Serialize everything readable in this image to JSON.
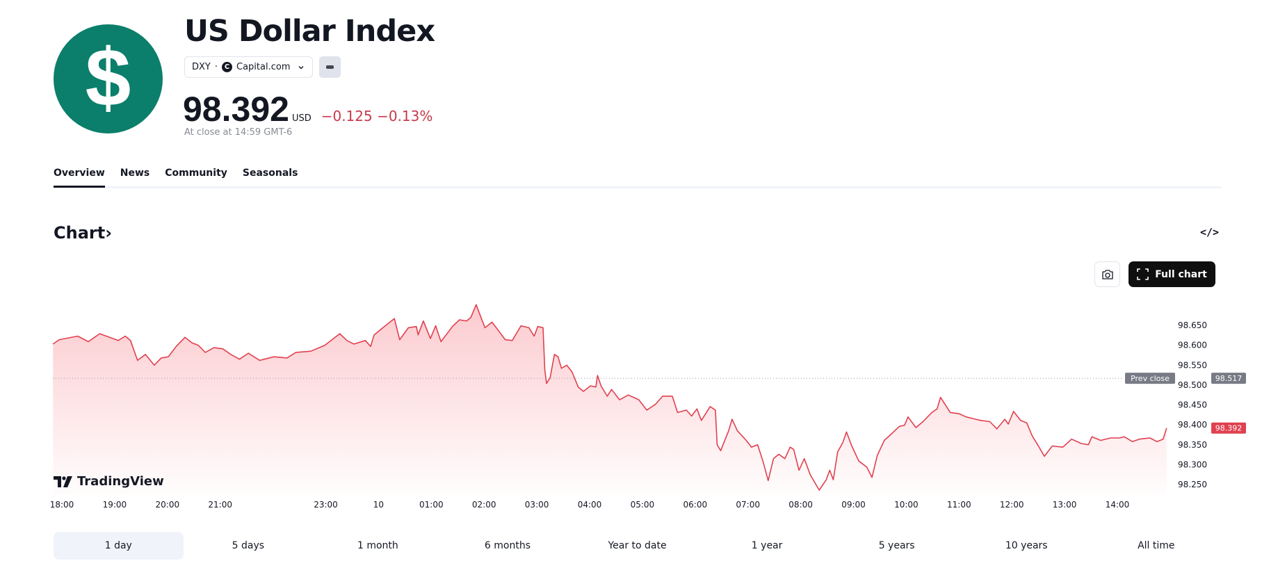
{
  "header": {
    "logo_glyph": "$",
    "title": "US Dollar Index",
    "symbol": "DXY",
    "separator": "·",
    "exchange_icon": "C",
    "exchange": "Capital.com",
    "price": "98.392",
    "currency": "USD",
    "change": "−0.125",
    "change_percent": "−0.13%",
    "close_note": "At close at 14:59 GMT-6"
  },
  "tabs": [
    {
      "label": "Overview",
      "active": true
    },
    {
      "label": "News"
    },
    {
      "label": "Community"
    },
    {
      "label": "Seasonals"
    }
  ],
  "chart_section": {
    "title": "Chart",
    "chevron": "›",
    "embed_label": "</>",
    "full_chart_label": "Full chart",
    "watermark": "TradingView"
  },
  "colors": {
    "line": "#e0404f",
    "negative": "#c73a4c",
    "brand_green": "#0b7f6b",
    "prev_close_tag": "#787b86"
  },
  "chart_data": {
    "type": "area",
    "x_unit": "minutes since 18:00",
    "y_unit": "USD",
    "ylim": [
      98.23,
      98.71
    ],
    "y_ticks": [
      98.65,
      98.6,
      98.55,
      98.5,
      98.45,
      98.4,
      98.35,
      98.3,
      98.25
    ],
    "x_ticks": [
      {
        "label": "18:00",
        "t": 0
      },
      {
        "label": "19:00",
        "t": 60
      },
      {
        "label": "20:00",
        "t": 120
      },
      {
        "label": "21:00",
        "t": 180
      },
      {
        "label": "23:00",
        "t": 300
      },
      {
        "label": "10",
        "t": 360
      },
      {
        "label": "01:00",
        "t": 420
      },
      {
        "label": "02:00",
        "t": 480
      },
      {
        "label": "03:00",
        "t": 540
      },
      {
        "label": "04:00",
        "t": 600
      },
      {
        "label": "05:00",
        "t": 660
      },
      {
        "label": "06:00",
        "t": 720
      },
      {
        "label": "07:00",
        "t": 780
      },
      {
        "label": "08:00",
        "t": 840
      },
      {
        "label": "09:00",
        "t": 900
      },
      {
        "label": "10:00",
        "t": 960
      },
      {
        "label": "11:00",
        "t": 1020
      },
      {
        "label": "12:00",
        "t": 1080
      },
      {
        "label": "13:00",
        "t": 1140
      },
      {
        "label": "14:00",
        "t": 1200
      }
    ],
    "prev_close": {
      "label": "Prev close",
      "value": "98.517"
    },
    "last": {
      "value": "98.392"
    },
    "points": [
      [
        -10,
        98.603
      ],
      [
        -3,
        98.614
      ],
      [
        18,
        98.623
      ],
      [
        30,
        98.609
      ],
      [
        43,
        98.629
      ],
      [
        64,
        98.612
      ],
      [
        72,
        98.623
      ],
      [
        78,
        98.612
      ],
      [
        86,
        98.562
      ],
      [
        95,
        98.577
      ],
      [
        105,
        98.55
      ],
      [
        113,
        98.568
      ],
      [
        121,
        98.571
      ],
      [
        130,
        98.597
      ],
      [
        140,
        98.62
      ],
      [
        148,
        98.606
      ],
      [
        155,
        98.6
      ],
      [
        163,
        98.582
      ],
      [
        173,
        98.594
      ],
      [
        183,
        98.591
      ],
      [
        192,
        98.577
      ],
      [
        202,
        98.565
      ],
      [
        212,
        98.58
      ],
      [
        225,
        98.562
      ],
      [
        241,
        98.571
      ],
      [
        256,
        98.568
      ],
      [
        266,
        98.582
      ],
      [
        283,
        98.585
      ],
      [
        299,
        98.6
      ],
      [
        316,
        98.629
      ],
      [
        324,
        98.612
      ],
      [
        332,
        98.603
      ],
      [
        345,
        98.612
      ],
      [
        351,
        98.597
      ],
      [
        355,
        98.626
      ],
      [
        365,
        98.644
      ],
      [
        378,
        98.667
      ],
      [
        384,
        98.614
      ],
      [
        394,
        98.644
      ],
      [
        403,
        98.647
      ],
      [
        405,
        98.626
      ],
      [
        411,
        98.661
      ],
      [
        419,
        98.617
      ],
      [
        425,
        98.649
      ],
      [
        431,
        98.609
      ],
      [
        444,
        98.647
      ],
      [
        452,
        98.664
      ],
      [
        460,
        98.661
      ],
      [
        465,
        98.67
      ],
      [
        471,
        98.702
      ],
      [
        477,
        98.667
      ],
      [
        481,
        98.644
      ],
      [
        489,
        98.658
      ],
      [
        498,
        98.632
      ],
      [
        504,
        98.614
      ],
      [
        512,
        98.612
      ],
      [
        522,
        98.649
      ],
      [
        531,
        98.644
      ],
      [
        537,
        98.623
      ],
      [
        541,
        98.647
      ],
      [
        547,
        98.644
      ],
      [
        549,
        98.539
      ],
      [
        551,
        98.504
      ],
      [
        555,
        98.518
      ],
      [
        560,
        98.577
      ],
      [
        564,
        98.571
      ],
      [
        568,
        98.542
      ],
      [
        574,
        98.55
      ],
      [
        580,
        98.533
      ],
      [
        587,
        98.495
      ],
      [
        593,
        98.484
      ],
      [
        601,
        98.498
      ],
      [
        607,
        98.495
      ],
      [
        609,
        98.524
      ],
      [
        613,
        98.498
      ],
      [
        620,
        98.472
      ],
      [
        625,
        98.489
      ],
      [
        634,
        98.463
      ],
      [
        644,
        98.475
      ],
      [
        650,
        98.469
      ],
      [
        656,
        98.463
      ],
      [
        665,
        98.437
      ],
      [
        675,
        98.452
      ],
      [
        683,
        98.472
      ],
      [
        694,
        98.472
      ],
      [
        700,
        98.431
      ],
      [
        710,
        98.437
      ],
      [
        716,
        98.422
      ],
      [
        722,
        98.44
      ],
      [
        727,
        98.411
      ],
      [
        737,
        98.446
      ],
      [
        743,
        98.437
      ],
      [
        745,
        98.35
      ],
      [
        749,
        98.335
      ],
      [
        758,
        98.385
      ],
      [
        762,
        98.414
      ],
      [
        768,
        98.385
      ],
      [
        778,
        98.361
      ],
      [
        784,
        98.344
      ],
      [
        791,
        98.35
      ],
      [
        797,
        98.309
      ],
      [
        803,
        98.26
      ],
      [
        809,
        98.315
      ],
      [
        815,
        98.326
      ],
      [
        822,
        98.315
      ],
      [
        828,
        98.344
      ],
      [
        832,
        98.338
      ],
      [
        838,
        98.286
      ],
      [
        844,
        98.315
      ],
      [
        851,
        98.274
      ],
      [
        861,
        98.236
      ],
      [
        869,
        98.262
      ],
      [
        873,
        98.286
      ],
      [
        877,
        98.262
      ],
      [
        882,
        98.332
      ],
      [
        888,
        98.356
      ],
      [
        892,
        98.382
      ],
      [
        898,
        98.347
      ],
      [
        906,
        98.309
      ],
      [
        915,
        98.294
      ],
      [
        921,
        98.268
      ],
      [
        927,
        98.323
      ],
      [
        935,
        98.361
      ],
      [
        944,
        98.379
      ],
      [
        952,
        98.396
      ],
      [
        958,
        98.399
      ],
      [
        962,
        98.42
      ],
      [
        971,
        98.393
      ],
      [
        979,
        98.408
      ],
      [
        989,
        98.431
      ],
      [
        995,
        98.44
      ],
      [
        999,
        98.469
      ],
      [
        1010,
        98.431
      ],
      [
        1020,
        98.428
      ],
      [
        1028,
        98.42
      ],
      [
        1039,
        98.414
      ],
      [
        1045,
        98.411
      ],
      [
        1055,
        98.408
      ],
      [
        1063,
        98.39
      ],
      [
        1072,
        98.414
      ],
      [
        1076,
        98.402
      ],
      [
        1082,
        98.434
      ],
      [
        1090,
        98.411
      ],
      [
        1097,
        98.405
      ],
      [
        1103,
        98.373
      ],
      [
        1111,
        98.344
      ],
      [
        1117,
        98.321
      ],
      [
        1126,
        98.347
      ],
      [
        1138,
        98.344
      ],
      [
        1148,
        98.364
      ],
      [
        1159,
        98.353
      ],
      [
        1167,
        98.35
      ],
      [
        1171,
        98.37
      ],
      [
        1181,
        98.361
      ],
      [
        1192,
        98.367
      ],
      [
        1202,
        98.367
      ],
      [
        1208,
        98.37
      ],
      [
        1217,
        98.358
      ],
      [
        1225,
        98.364
      ],
      [
        1237,
        98.367
      ],
      [
        1245,
        98.358
      ],
      [
        1252,
        98.364
      ],
      [
        1256,
        98.392
      ]
    ]
  },
  "ranges": [
    {
      "label": "1 day",
      "active": true
    },
    {
      "label": "5 days"
    },
    {
      "label": "1 month"
    },
    {
      "label": "6 months"
    },
    {
      "label": "Year to date"
    },
    {
      "label": "1 year"
    },
    {
      "label": "5 years"
    },
    {
      "label": "10 years"
    },
    {
      "label": "All time"
    }
  ]
}
